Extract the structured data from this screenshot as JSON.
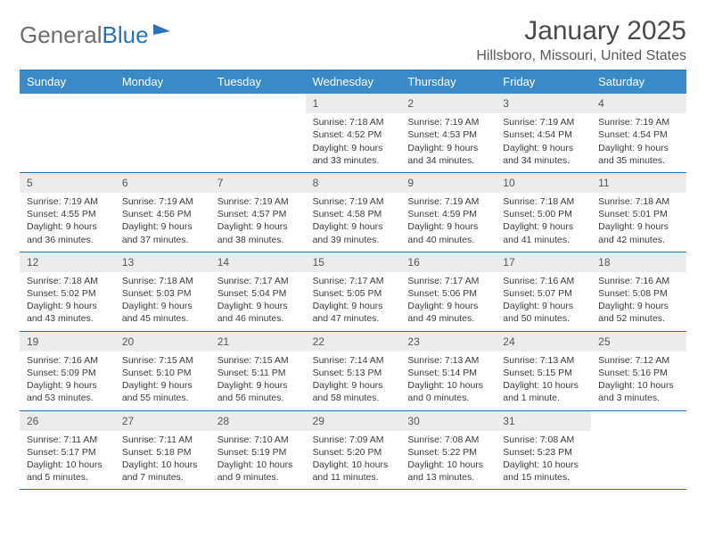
{
  "logo": {
    "text1": "General",
    "text2": "Blue"
  },
  "title": "January 2025",
  "location": "Hillsboro, Missouri, United States",
  "colors": {
    "header_bg": "#3a8ac7",
    "border": "#2a72b5",
    "daynum_bg": "#ececec",
    "text": "#3b3b3b"
  },
  "day_names": [
    "Sunday",
    "Monday",
    "Tuesday",
    "Wednesday",
    "Thursday",
    "Friday",
    "Saturday"
  ],
  "weeks": [
    [
      null,
      null,
      null,
      {
        "n": "1",
        "sr": "7:18 AM",
        "ss": "4:52 PM",
        "dl": "9 hours and 33 minutes."
      },
      {
        "n": "2",
        "sr": "7:19 AM",
        "ss": "4:53 PM",
        "dl": "9 hours and 34 minutes."
      },
      {
        "n": "3",
        "sr": "7:19 AM",
        "ss": "4:54 PM",
        "dl": "9 hours and 34 minutes."
      },
      {
        "n": "4",
        "sr": "7:19 AM",
        "ss": "4:54 PM",
        "dl": "9 hours and 35 minutes."
      }
    ],
    [
      {
        "n": "5",
        "sr": "7:19 AM",
        "ss": "4:55 PM",
        "dl": "9 hours and 36 minutes."
      },
      {
        "n": "6",
        "sr": "7:19 AM",
        "ss": "4:56 PM",
        "dl": "9 hours and 37 minutes."
      },
      {
        "n": "7",
        "sr": "7:19 AM",
        "ss": "4:57 PM",
        "dl": "9 hours and 38 minutes."
      },
      {
        "n": "8",
        "sr": "7:19 AM",
        "ss": "4:58 PM",
        "dl": "9 hours and 39 minutes."
      },
      {
        "n": "9",
        "sr": "7:19 AM",
        "ss": "4:59 PM",
        "dl": "9 hours and 40 minutes."
      },
      {
        "n": "10",
        "sr": "7:18 AM",
        "ss": "5:00 PM",
        "dl": "9 hours and 41 minutes."
      },
      {
        "n": "11",
        "sr": "7:18 AM",
        "ss": "5:01 PM",
        "dl": "9 hours and 42 minutes."
      }
    ],
    [
      {
        "n": "12",
        "sr": "7:18 AM",
        "ss": "5:02 PM",
        "dl": "9 hours and 43 minutes."
      },
      {
        "n": "13",
        "sr": "7:18 AM",
        "ss": "5:03 PM",
        "dl": "9 hours and 45 minutes."
      },
      {
        "n": "14",
        "sr": "7:17 AM",
        "ss": "5:04 PM",
        "dl": "9 hours and 46 minutes."
      },
      {
        "n": "15",
        "sr": "7:17 AM",
        "ss": "5:05 PM",
        "dl": "9 hours and 47 minutes."
      },
      {
        "n": "16",
        "sr": "7:17 AM",
        "ss": "5:06 PM",
        "dl": "9 hours and 49 minutes."
      },
      {
        "n": "17",
        "sr": "7:16 AM",
        "ss": "5:07 PM",
        "dl": "9 hours and 50 minutes."
      },
      {
        "n": "18",
        "sr": "7:16 AM",
        "ss": "5:08 PM",
        "dl": "9 hours and 52 minutes."
      }
    ],
    [
      {
        "n": "19",
        "sr": "7:16 AM",
        "ss": "5:09 PM",
        "dl": "9 hours and 53 minutes."
      },
      {
        "n": "20",
        "sr": "7:15 AM",
        "ss": "5:10 PM",
        "dl": "9 hours and 55 minutes."
      },
      {
        "n": "21",
        "sr": "7:15 AM",
        "ss": "5:11 PM",
        "dl": "9 hours and 56 minutes."
      },
      {
        "n": "22",
        "sr": "7:14 AM",
        "ss": "5:13 PM",
        "dl": "9 hours and 58 minutes."
      },
      {
        "n": "23",
        "sr": "7:13 AM",
        "ss": "5:14 PM",
        "dl": "10 hours and 0 minutes."
      },
      {
        "n": "24",
        "sr": "7:13 AM",
        "ss": "5:15 PM",
        "dl": "10 hours and 1 minute."
      },
      {
        "n": "25",
        "sr": "7:12 AM",
        "ss": "5:16 PM",
        "dl": "10 hours and 3 minutes."
      }
    ],
    [
      {
        "n": "26",
        "sr": "7:11 AM",
        "ss": "5:17 PM",
        "dl": "10 hours and 5 minutes."
      },
      {
        "n": "27",
        "sr": "7:11 AM",
        "ss": "5:18 PM",
        "dl": "10 hours and 7 minutes."
      },
      {
        "n": "28",
        "sr": "7:10 AM",
        "ss": "5:19 PM",
        "dl": "10 hours and 9 minutes."
      },
      {
        "n": "29",
        "sr": "7:09 AM",
        "ss": "5:20 PM",
        "dl": "10 hours and 11 minutes."
      },
      {
        "n": "30",
        "sr": "7:08 AM",
        "ss": "5:22 PM",
        "dl": "10 hours and 13 minutes."
      },
      {
        "n": "31",
        "sr": "7:08 AM",
        "ss": "5:23 PM",
        "dl": "10 hours and 15 minutes."
      },
      null
    ]
  ]
}
